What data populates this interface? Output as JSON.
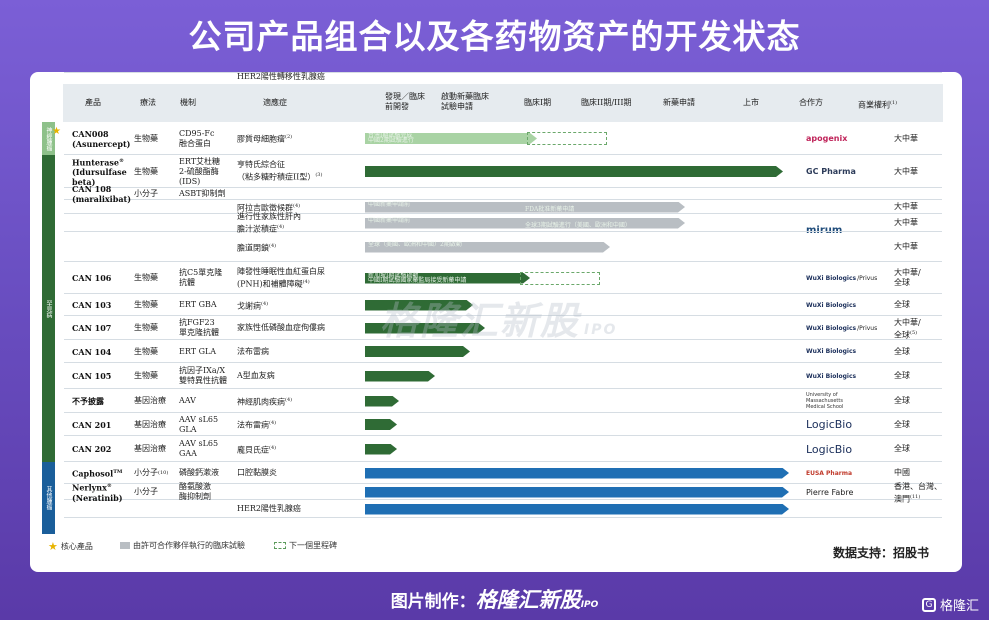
{
  "title": "公司产品组合以及各药物资产的开发状态",
  "header": {
    "product": "產品",
    "therapy": "療法",
    "mechanism": "機制",
    "indication": "適應症",
    "stage1a": "發現／臨床",
    "stage1b": "前開發",
    "stage2a": "啟動新藥臨床",
    "stage2b": "試驗申請",
    "stage3": "臨床I期",
    "stage4": "臨床II期/III期",
    "stage5": "新藥申請",
    "stage6": "上市",
    "partner": "合作方",
    "rights": "商業權利",
    "rights_note": "(1)"
  },
  "categories": [
    {
      "label": "神經腫瘤",
      "color": "#8ec18a"
    },
    {
      "label": "罕見病",
      "color": "#2f6b35"
    },
    {
      "label": "其他腫瘤",
      "color": "#1a5e9a"
    }
  ],
  "rows": [
    {
      "product": "CAN008",
      "product2": "(Asunercept)",
      "therapy": "生物藥",
      "mech": "CD95-Fc",
      "mech2": "融合蛋白",
      "indication": "膠質母細胞瘤",
      "ind_note": "(2)",
      "partner": "apogenix",
      "rights": "大中華",
      "bar_label": "台灣I期試驗完成",
      "bar_label2": "中國2期試驗進行"
    },
    {
      "product": "Hunterase",
      "product_note": "®",
      "product2": "(Idursulfase",
      "product3": "beta)",
      "therapy": "生物藥",
      "mech": "ERT艾杜糖",
      "mech2": "2-硫酸酯酶",
      "mech3": "(IDS)",
      "indication": "亨特氏綜合征",
      "indication2": "（粘多糖貯積症II型）",
      "ind_note": "(3)",
      "partner": "GC Pharma",
      "rights": "大中華"
    },
    {
      "product": "CAN 108",
      "product2": "(maralixibat)",
      "therapy": "小分子",
      "mech": "ASBT抑制劑",
      "partner": "mirum"
    },
    {
      "indication": "阿拉吉歐徵候群",
      "ind_note": "(4)",
      "rights": "大中華",
      "bar_label": "中國新藥申請前",
      "bar_label2": "FDA批准新藥申請"
    },
    {
      "indication": "進行性家族性肝內",
      "indication2": "膽汁淤積症",
      "ind_note": "(4)",
      "rights": "大中華",
      "bar_label": "中國新藥申請前",
      "bar_label2": "全球3期試驗進行（美國、歐洲和中國）"
    },
    {
      "indication": "膽道閉鎖",
      "ind_note": "(4)",
      "rights": "大中華",
      "bar_label": "全球（美國、歐洲和中國）2期啟動"
    },
    {
      "product": "CAN 106",
      "therapy": "生物藥",
      "mech": "抗C5單克隆",
      "mech2": "抗體",
      "indication": "陣發性睡眠性血紅蛋白尿",
      "indication2": "(PNH)和補體障礙",
      "ind_note": "(4)",
      "partner": "WuXi Biologics",
      "partner_note": "/Privus",
      "rights": "大中華/",
      "rights2": "全球",
      "bar_label": "新加坡I期試驗啟動",
      "bar_label2": "中國I期試驗國家藥監局接受新藥申請"
    },
    {
      "product": "CAN 103",
      "therapy": "生物藥",
      "mech": "ERT GBA",
      "indication": "戈謝病",
      "ind_note": "(4)",
      "partner": "WuXi Biologics",
      "rights": "全球"
    },
    {
      "product": "CAN 107",
      "therapy": "生物藥",
      "mech": "抗FGF23",
      "mech2": "單克隆抗體",
      "indication": "家族性低磷酸血症佝僂病",
      "partner": "WuXi Biologics",
      "partner_note": "/Privus",
      "rights": "大中華/",
      "rights2": "全球",
      "rights_note": "(5)"
    },
    {
      "product": "CAN 104",
      "therapy": "生物藥",
      "mech": "ERT GLA",
      "indication": "法布雷病",
      "partner": "WuXi Biologics",
      "rights": "全球"
    },
    {
      "product": "CAN 105",
      "therapy": "生物藥",
      "mech": "抗因子IXa/X",
      "mech2": "雙特異性抗體",
      "indication": "A型血友病",
      "partner": "WuXi Biologics",
      "rights": "全球"
    },
    {
      "product": "不予披露",
      "therapy": "基因治療",
      "mech": "AAV",
      "indication": "神經肌肉疾病",
      "ind_note": "(4)",
      "partner": "University of Massachusetts Medical School",
      "rights": "全球"
    },
    {
      "product": "CAN 201",
      "therapy": "基因治療",
      "mech": "AAV sL65",
      "mech2": "GLA",
      "indication": "法布雷病",
      "ind_note": "(4)",
      "partner": "LogicBio",
      "rights": "全球"
    },
    {
      "product": "CAN 202",
      "therapy": "基因治療",
      "mech": "AAV sL65",
      "mech2": "GAA",
      "indication": "龐貝氏症",
      "ind_note": "(4)",
      "partner": "LogicBio",
      "rights": "全球"
    },
    {
      "product": "Caphosol",
      "product_note": "TM",
      "therapy": "小分子",
      "therapy_note": "(10)",
      "mech": "磷酸鈣漱液",
      "indication": "口腔黏膜炎",
      "partner": "EUSA Pharma",
      "rights": "中國"
    },
    {
      "product": "Nerlynx",
      "product_note": "®",
      "product2": "(Neratinib)",
      "therapy": "小分子",
      "mech": "酪氨酸激",
      "mech2": "酶抑制劑",
      "partner": "Pierre Fabre",
      "rights": "香港、台灣、",
      "rights2": "澳門",
      "rights_note": "(11)"
    },
    {
      "indication": "HER2陽性乳腺癌"
    },
    {
      "indication": "HER2陽性轉移性乳腺癌"
    }
  ],
  "legend": {
    "core": "核心產品",
    "partner_trial": "由許可合作夥伴執行的臨床試驗",
    "next": "下一個里程碑"
  },
  "source": "数据支持：招股书",
  "watermark": "格隆汇新股",
  "watermark_ipo": "IPO",
  "footer": {
    "label": "图片制作：",
    "brand": "格隆汇新股",
    "ipo": "IPO"
  },
  "corner_logo": "格隆汇",
  "colors": {
    "light_green": "#a9d3a4",
    "dark_green": "#2f6b35",
    "blue": "#1f6fb4",
    "gray": "#b9bec3"
  }
}
